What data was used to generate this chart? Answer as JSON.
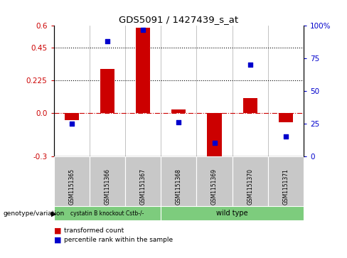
{
  "title": "GDS5091 / 1427439_s_at",
  "samples": [
    "GSM1151365",
    "GSM1151366",
    "GSM1151367",
    "GSM1151368",
    "GSM1151369",
    "GSM1151370",
    "GSM1151371"
  ],
  "bar_values": [
    -0.05,
    0.3,
    0.585,
    0.02,
    -0.32,
    0.1,
    -0.065
  ],
  "dot_values": [
    25,
    88,
    97,
    26,
    10,
    70,
    15
  ],
  "ylim_left": [
    -0.3,
    0.6
  ],
  "ylim_right": [
    0,
    100
  ],
  "yticks_left": [
    -0.3,
    0.0,
    0.225,
    0.45,
    0.6
  ],
  "yticks_right": [
    0,
    25,
    50,
    75,
    100
  ],
  "ytick_labels_right": [
    "0",
    "25",
    "50",
    "75",
    "100%"
  ],
  "hlines": [
    0.225,
    0.45
  ],
  "bar_color": "#cc0000",
  "dot_color": "#0000cc",
  "zero_line_color": "#cc0000",
  "background_color": "#ffffff",
  "genotype_groups": [
    {
      "label": "cystatin B knockout Cstb-/-",
      "start": 0,
      "end": 3,
      "color": "#7dcc7d"
    },
    {
      "label": "wild type",
      "start": 3,
      "end": 7,
      "color": "#7dcc7d"
    }
  ],
  "legend_bar_label": "transformed count",
  "legend_dot_label": "percentile rank within the sample",
  "genotype_label": "genotype/variation",
  "bar_width": 0.4,
  "dot_size": 18,
  "sample_col_color": "#c8c8c8"
}
